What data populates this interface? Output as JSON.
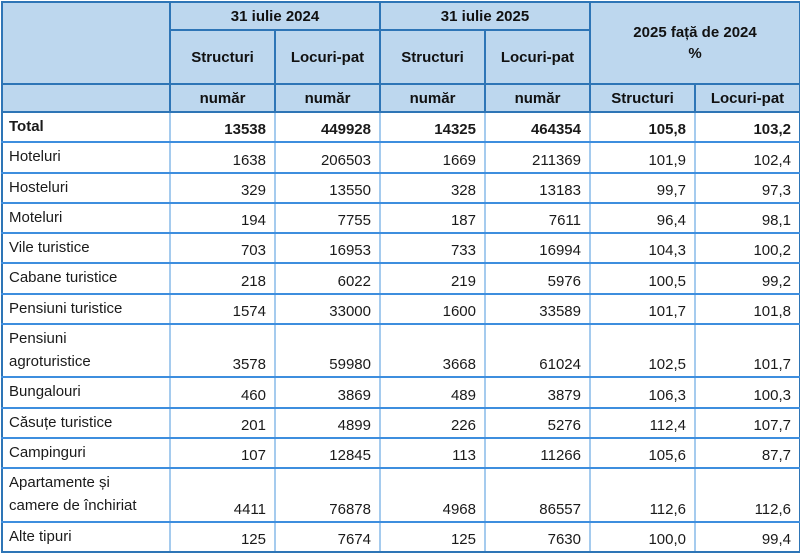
{
  "colors": {
    "header_fill": "#BDD7EE",
    "header_border": "#2E75B6",
    "grid_horizontal": "#3E8EDE",
    "grid_vertical": "#A5CBEE",
    "text": "#1a1a1a"
  },
  "chart_data": {
    "type": "table",
    "header": {
      "group_2024": "31 iulie 2024",
      "group_2025": "31 iulie 2025",
      "ratio_line1": "2025 față de 2024",
      "ratio_line2": "%",
      "col_structuri": "Structuri",
      "col_locuri_pat": "Locuri-pat",
      "unit": "număr"
    },
    "columns": [
      "Structuri 31 iulie 2024",
      "Locuri-pat 31 iulie 2024",
      "Structuri 31 iulie 2025",
      "Locuri-pat 31 iulie 2025",
      "Structuri 2025 față de 2024 %",
      "Locuri-pat 2025 față de 2024 %"
    ],
    "rows": [
      {
        "label": "Total",
        "bold": true,
        "tall": false,
        "values": [
          "13538",
          "449928",
          "14325",
          "464354",
          "105,8",
          "103,2"
        ]
      },
      {
        "label": "Hoteluri",
        "bold": false,
        "tall": false,
        "values": [
          "1638",
          "206503",
          "1669",
          "211369",
          "101,9",
          "102,4"
        ]
      },
      {
        "label": "Hosteluri",
        "bold": false,
        "tall": false,
        "values": [
          "329",
          "13550",
          "328",
          "13183",
          "99,7",
          "97,3"
        ]
      },
      {
        "label": "Moteluri",
        "bold": false,
        "tall": false,
        "values": [
          "194",
          "7755",
          "187",
          "7611",
          "96,4",
          "98,1"
        ]
      },
      {
        "label": "Vile turistice",
        "bold": false,
        "tall": false,
        "values": [
          "703",
          "16953",
          "733",
          "16994",
          "104,3",
          "100,2"
        ]
      },
      {
        "label": "Cabane turistice",
        "bold": false,
        "tall": false,
        "values": [
          "218",
          "6022",
          "219",
          "5976",
          "100,5",
          "99,2"
        ]
      },
      {
        "label": "Pensiuni turistice",
        "bold": false,
        "tall": false,
        "values": [
          "1574",
          "33000",
          "1600",
          "33589",
          "101,7",
          "101,8"
        ]
      },
      {
        "label": "Pensiuni\nagroturistice",
        "bold": false,
        "tall": true,
        "values": [
          "3578",
          "59980",
          "3668",
          "61024",
          "102,5",
          "101,7"
        ]
      },
      {
        "label": "Bungalouri",
        "bold": false,
        "tall": false,
        "values": [
          "460",
          "3869",
          "489",
          "3879",
          "106,3",
          "100,3"
        ]
      },
      {
        "label": "Căsuțe turistice",
        "bold": false,
        "tall": false,
        "values": [
          "201",
          "4899",
          "226",
          "5276",
          "112,4",
          "107,7"
        ]
      },
      {
        "label": "Campinguri",
        "bold": false,
        "tall": false,
        "values": [
          "107",
          "12845",
          "113",
          "11266",
          "105,6",
          "87,7"
        ]
      },
      {
        "label": "Apartamente și\ncamere de închiriat",
        "bold": false,
        "tall": true,
        "values": [
          "4411",
          "76878",
          "4968",
          "86557",
          "112,6",
          "112,6"
        ]
      },
      {
        "label": "Alte tipuri",
        "bold": false,
        "tall": false,
        "values": [
          "125",
          "7674",
          "125",
          "7630",
          "100,0",
          "99,4"
        ]
      }
    ]
  }
}
